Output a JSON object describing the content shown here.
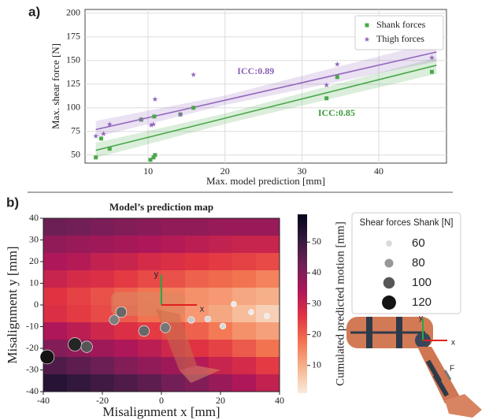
{
  "panel_labels": [
    "a)",
    "b)"
  ],
  "leg_labels": [
    "y",
    "x",
    "F"
  ],
  "chart_data": [
    {
      "type": "scatter",
      "xlabel": "Max. model prediction [mm]",
      "ylabel": "Max. shear force [N]",
      "xlim": [
        1.8,
        48.8
      ],
      "ylim": [
        41.5,
        204
      ],
      "xticks": [
        10,
        20,
        30,
        40
      ],
      "yticks": [
        50,
        75,
        100,
        125,
        150,
        175,
        200
      ],
      "grid": true,
      "legend": "upper right",
      "series": [
        {
          "name": "Shank forces",
          "color": "#4aa84a",
          "marker": "square",
          "x": [
            3.2,
            3.9,
            5.0,
            9.1,
            10.3,
            10.7,
            10.9,
            10.8,
            14.2,
            15.9,
            33.2,
            34.6,
            46.9
          ],
          "values": [
            47.5,
            67.5,
            56.7,
            87.5,
            45,
            47.5,
            50,
            90.8,
            93,
            100,
            110,
            132.5,
            138
          ],
          "fit_x": [
            3.2,
            20,
            47.5
          ],
          "fit": [
            55,
            89,
            145
          ],
          "fit_lower": [
            47,
            83,
            136
          ],
          "fit_upper": [
            63,
            94,
            153
          ]
        },
        {
          "name": "Thigh forces",
          "color": "#9467bd",
          "marker": "star",
          "x": [
            3.2,
            4.2,
            5.0,
            9.1,
            10.4,
            10.7,
            10.9,
            14.2,
            15.9,
            33.2,
            34.6,
            46.9
          ],
          "values": [
            70,
            72.5,
            82.5,
            87.5,
            81.7,
            82.5,
            109,
            93,
            135,
            124,
            146,
            153
          ],
          "fit_x": [
            3.2,
            20,
            47.5
          ],
          "fit": [
            77,
            108,
            159
          ],
          "fit_lower": [
            69,
            103,
            149
          ],
          "fit_upper": [
            86,
            113,
            170
          ]
        }
      ],
      "annotations": [
        {
          "text": "ICC:0.89",
          "color": "#8a5fb8"
        },
        {
          "text": "ICC:0.85",
          "color": "#3a9a3a"
        }
      ]
    },
    {
      "type": "heatmap",
      "title": "Model’s prediction map",
      "xlabel": "Misalignment x [mm]",
      "ylabel": "Misalignment y [mm]",
      "xlim": [
        -40,
        40
      ],
      "ylim": [
        -40,
        40
      ],
      "xticks": [
        -40,
        -20,
        0,
        20,
        40
      ],
      "yticks": [
        -40,
        -30,
        -20,
        -10,
        0,
        10,
        20,
        30,
        40
      ],
      "x_centers": [
        -36,
        -28,
        -20,
        -12,
        -4,
        4,
        12,
        20,
        28,
        36
      ],
      "y_centers": [
        36,
        28,
        20,
        12,
        4,
        -4,
        -12,
        -20,
        -28,
        -36
      ],
      "z": [
        [
          43,
          42,
          41,
          40,
          39,
          38,
          38,
          37,
          37,
          37
        ],
        [
          38,
          37,
          36,
          35,
          34,
          33,
          32,
          31,
          30,
          30
        ],
        [
          34,
          33,
          31,
          30,
          28,
          27,
          26,
          25,
          24,
          23
        ],
        [
          30,
          28,
          27,
          25,
          23,
          22,
          20,
          19,
          18,
          16
        ],
        [
          26,
          24,
          22,
          20,
          18,
          16,
          14,
          13,
          11,
          10
        ],
        [
          27,
          25,
          23,
          21,
          18,
          16,
          13,
          11,
          8,
          5
        ],
        [
          34,
          32,
          29,
          27,
          25,
          23,
          20,
          17,
          14,
          12
        ],
        [
          40,
          38,
          36,
          34,
          32,
          29,
          26,
          24,
          21,
          18
        ],
        [
          47,
          45,
          43,
          40,
          38,
          36,
          33,
          30,
          28,
          25
        ],
        [
          53,
          51,
          49,
          47,
          45,
          42,
          40,
          37,
          34,
          31
        ]
      ],
      "colormap": [
        "#faebdd",
        "#f6b48e",
        "#f37651",
        "#e13342",
        "#ad1759",
        "#701f57",
        "#35193e",
        "#03051a"
      ],
      "clim": [
        1,
        59
      ],
      "colorbar_label": "Cumulated predicted motion [mm]",
      "colorbar_ticks": [
        10,
        20,
        30,
        40,
        50
      ],
      "points": {
        "x": [
          -38.7,
          -29.3,
          -25.3,
          -16,
          -13.6,
          -5.9,
          1.3,
          10.1,
          15.7,
          20.8,
          24.5,
          30.4,
          35.7
        ],
        "y": [
          -24,
          -18.2,
          -19.3,
          -6.9,
          -3.3,
          -12,
          -10.5,
          -6.9,
          -6.5,
          -9.8,
          0.4,
          -3.3,
          -5.1
        ],
        "values": [
          120,
          115,
          100,
          88,
          95,
          95,
          90,
          65,
          60,
          60,
          55,
          55,
          55
        ]
      },
      "size_legend": {
        "title": "Shear forces Shank [N]",
        "values": [
          60,
          80,
          100,
          120
        ]
      },
      "frame_labels": [
        "y",
        "x"
      ]
    }
  ]
}
